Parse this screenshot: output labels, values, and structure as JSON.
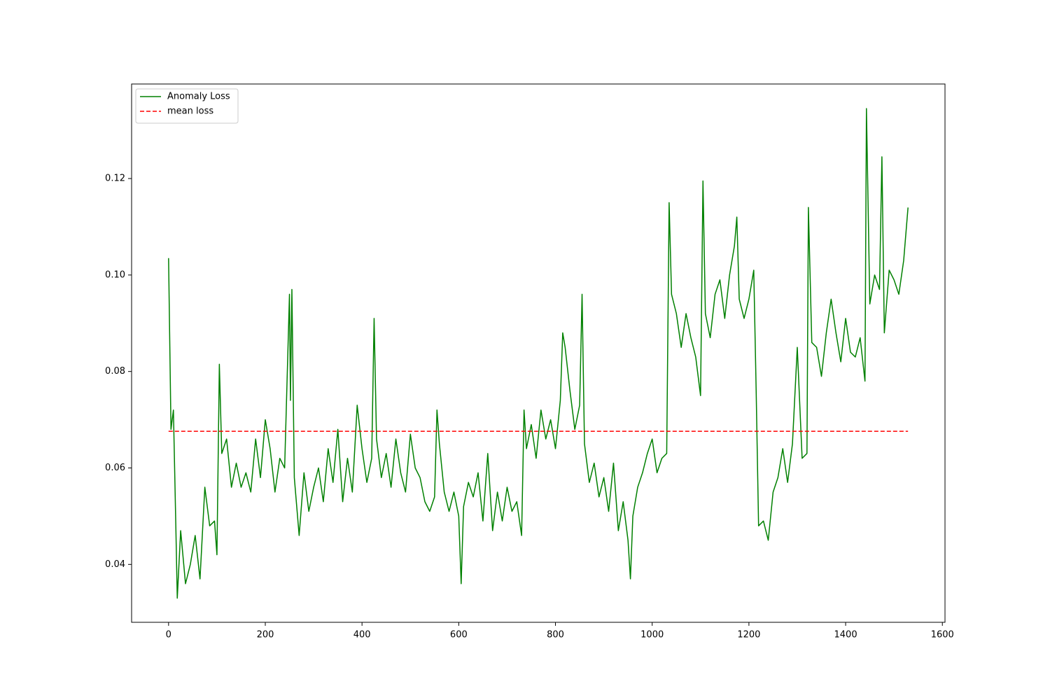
{
  "chart_data": {
    "type": "line",
    "xlim": [
      -76.45,
      1605.45
    ],
    "ylim": [
      0.028,
      0.1396
    ],
    "xticks": [
      0,
      200,
      400,
      600,
      800,
      1000,
      1200,
      1400,
      1600
    ],
    "yticks": [
      0.04,
      0.06,
      0.08,
      {
        "value": 0.1,
        "label": "0.10"
      },
      0.12
    ],
    "grid": false,
    "legend": "upper left",
    "series": [
      {
        "name": "Anomaly Loss",
        "color": "#008000",
        "style": "solid",
        "x": [
          0,
          5,
          10,
          15,
          18,
          25,
          35,
          45,
          55,
          65,
          75,
          85,
          95,
          100,
          105,
          110,
          120,
          130,
          140,
          150,
          160,
          170,
          180,
          190,
          200,
          210,
          220,
          230,
          240,
          250,
          252,
          255,
          260,
          270,
          280,
          290,
          300,
          310,
          320,
          330,
          340,
          350,
          360,
          370,
          380,
          390,
          400,
          410,
          420,
          425,
          430,
          440,
          450,
          460,
          470,
          480,
          490,
          500,
          510,
          520,
          530,
          540,
          550,
          555,
          560,
          570,
          580,
          590,
          600,
          605,
          610,
          620,
          630,
          640,
          650,
          660,
          670,
          680,
          690,
          700,
          710,
          720,
          730,
          735,
          740,
          750,
          760,
          770,
          780,
          790,
          800,
          810,
          815,
          820,
          830,
          840,
          850,
          855,
          860,
          870,
          880,
          890,
          900,
          910,
          920,
          930,
          940,
          950,
          955,
          960,
          970,
          980,
          990,
          1000,
          1010,
          1020,
          1030,
          1035,
          1040,
          1050,
          1060,
          1070,
          1080,
          1090,
          1100,
          1105,
          1110,
          1120,
          1130,
          1140,
          1150,
          1160,
          1170,
          1175,
          1180,
          1190,
          1200,
          1210,
          1215,
          1220,
          1230,
          1240,
          1250,
          1260,
          1270,
          1280,
          1290,
          1300,
          1310,
          1320,
          1323,
          1330,
          1340,
          1350,
          1360,
          1370,
          1380,
          1390,
          1400,
          1410,
          1420,
          1430,
          1440,
          1443,
          1450,
          1460,
          1470,
          1475,
          1480,
          1490,
          1500,
          1510,
          1520,
          1529
        ],
        "values": [
          0.1035,
          0.068,
          0.072,
          0.048,
          0.033,
          0.047,
          0.036,
          0.04,
          0.046,
          0.037,
          0.056,
          0.048,
          0.049,
          0.042,
          0.0815,
          0.063,
          0.066,
          0.056,
          0.061,
          0.056,
          0.059,
          0.055,
          0.066,
          0.058,
          0.07,
          0.064,
          0.055,
          0.062,
          0.06,
          0.096,
          0.074,
          0.097,
          0.058,
          0.046,
          0.059,
          0.051,
          0.056,
          0.06,
          0.053,
          0.064,
          0.057,
          0.068,
          0.053,
          0.062,
          0.055,
          0.073,
          0.064,
          0.057,
          0.062,
          0.091,
          0.066,
          0.058,
          0.063,
          0.056,
          0.066,
          0.059,
          0.055,
          0.067,
          0.06,
          0.058,
          0.053,
          0.051,
          0.054,
          0.072,
          0.065,
          0.055,
          0.051,
          0.055,
          0.05,
          0.036,
          0.052,
          0.057,
          0.054,
          0.059,
          0.049,
          0.063,
          0.047,
          0.055,
          0.049,
          0.056,
          0.051,
          0.053,
          0.046,
          0.072,
          0.064,
          0.069,
          0.062,
          0.072,
          0.066,
          0.07,
          0.064,
          0.074,
          0.088,
          0.085,
          0.076,
          0.068,
          0.073,
          0.096,
          0.065,
          0.057,
          0.061,
          0.054,
          0.058,
          0.051,
          0.061,
          0.047,
          0.053,
          0.045,
          0.037,
          0.05,
          0.056,
          0.059,
          0.063,
          0.066,
          0.059,
          0.062,
          0.063,
          0.115,
          0.096,
          0.092,
          0.085,
          0.092,
          0.087,
          0.083,
          0.075,
          0.1195,
          0.092,
          0.087,
          0.096,
          0.099,
          0.091,
          0.1,
          0.106,
          0.112,
          0.095,
          0.091,
          0.095,
          0.101,
          0.076,
          0.048,
          0.049,
          0.045,
          0.055,
          0.058,
          0.064,
          0.057,
          0.065,
          0.085,
          0.062,
          0.063,
          0.114,
          0.086,
          0.085,
          0.079,
          0.088,
          0.095,
          0.088,
          0.082,
          0.091,
          0.084,
          0.083,
          0.087,
          0.078,
          0.1345,
          0.094,
          0.1,
          0.097,
          0.1245,
          0.088,
          0.101,
          0.099,
          0.096,
          0.103,
          0.114
        ]
      },
      {
        "name": "mean loss",
        "color": "#ff0000",
        "style": "dashed",
        "x": [
          0,
          1529
        ],
        "values": [
          0.0676,
          0.0676
        ]
      }
    ]
  }
}
